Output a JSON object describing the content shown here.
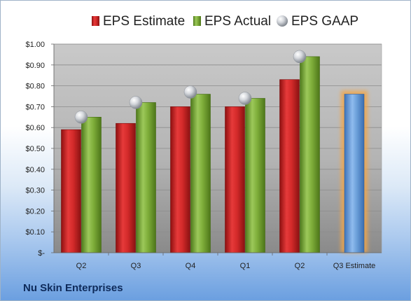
{
  "chart_data": {
    "type": "bar",
    "categories": [
      "Q2",
      "Q3",
      "Q4",
      "Q1",
      "Q2",
      "Q3 Estimate"
    ],
    "series": [
      {
        "name": "EPS Estimate",
        "values": [
          0.59,
          0.62,
          0.7,
          0.7,
          0.83,
          null
        ],
        "color": "#d42a2a"
      },
      {
        "name": "EPS Actual",
        "values": [
          0.65,
          0.72,
          0.76,
          0.74,
          0.94,
          null
        ],
        "color": "#7fae3a"
      },
      {
        "name": "EPS GAAP",
        "values": [
          0.65,
          0.72,
          0.77,
          0.74,
          0.94,
          null
        ],
        "color": "#c2c6cc",
        "marker": "sphere"
      }
    ],
    "estimate": {
      "category": "Q3 Estimate",
      "value": 0.76,
      "color": "#6fa3dc",
      "glow": "#f2a64a"
    },
    "ylim": [
      0,
      1.0
    ],
    "ytick_values": [
      0,
      0.1,
      0.2,
      0.3,
      0.4,
      0.5,
      0.6,
      0.7,
      0.8,
      0.9,
      1.0
    ],
    "ytick_labels": [
      "$-",
      "$0.10",
      "$0.20",
      "$0.30",
      "$0.40",
      "$0.50",
      "$0.60",
      "$0.70",
      "$0.80",
      "$0.90",
      "$1.00"
    ],
    "legend_position": "top",
    "grid": true
  },
  "company": "Nu Skin Enterprises"
}
